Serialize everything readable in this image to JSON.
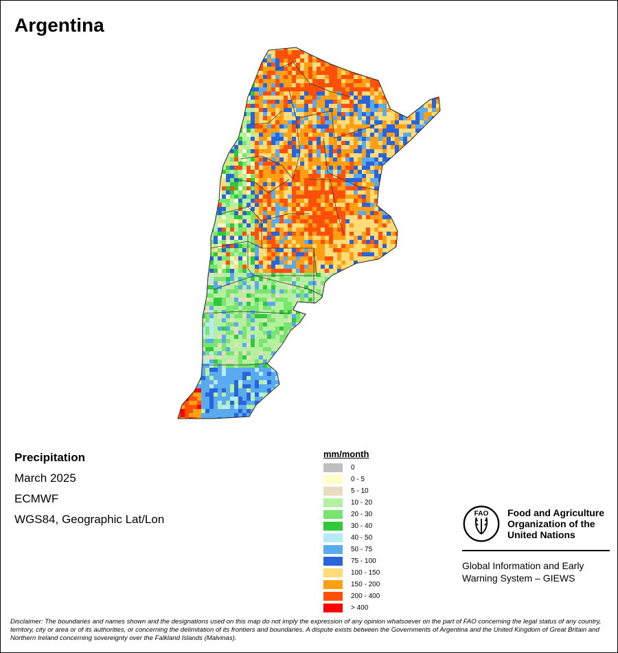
{
  "title": "Argentina",
  "info": {
    "variable": "Precipitation",
    "period": "March 2025",
    "source": "ECMWF",
    "projection": "WGS84, Geographic Lat/Lon"
  },
  "legend": {
    "title": "mm/month",
    "items": [
      {
        "label": "0",
        "color": "#bfbfbf"
      },
      {
        "label": "0 - 5",
        "color": "#ffffc8"
      },
      {
        "label": "5 - 10",
        "color": "#e8dcc0"
      },
      {
        "label": "10 - 20",
        "color": "#b4f0a0"
      },
      {
        "label": "20 - 30",
        "color": "#78e66e"
      },
      {
        "label": "30 - 40",
        "color": "#32c83c"
      },
      {
        "label": "40 - 50",
        "color": "#b4ebf5"
      },
      {
        "label": "50 - 75",
        "color": "#5aaaf0"
      },
      {
        "label": "75 - 100",
        "color": "#2864dc"
      },
      {
        "label": "100 - 150",
        "color": "#ffdc78"
      },
      {
        "label": "150 - 200",
        "color": "#ffa014"
      },
      {
        "label": "200 - 400",
        "color": "#ff500a"
      },
      {
        "label": "> 400",
        "color": "#ff0000"
      }
    ]
  },
  "organization": {
    "logo_text": "FAO",
    "name_lines": [
      "Food and Agriculture",
      "Organization of the",
      "United Nations"
    ],
    "system_lines": [
      "Global Information and Early",
      "Warning System – GIEWS"
    ]
  },
  "disclaimer": "Disclaimer: The boundaries and names shown and the designations used on this map do not imply the expression of any opinion whatsoever on the part of FAO concerning the legal status of any country, territory, city or area or of its authorities, or concerning the delimitation of its frontiers and boundaries. A dispute exists between the Governments of Argentina and the United Kingdom of Great Britain and Northern Ireland concerning sovereignty over the Falkland Islands (Malvinas)."
}
